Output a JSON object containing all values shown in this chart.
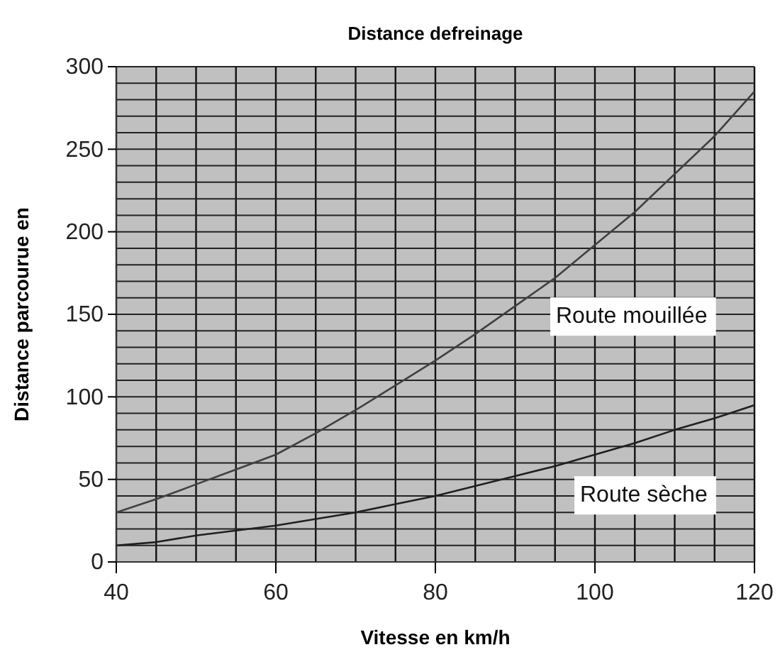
{
  "chart_data": {
    "type": "line",
    "title": "Distance defreinage",
    "xlabel": "Vitesse en km/h",
    "ylabel": "Distance parcourue en",
    "x": [
      40,
      45,
      50,
      55,
      60,
      65,
      70,
      75,
      80,
      85,
      90,
      95,
      100,
      105,
      110,
      115,
      120
    ],
    "series": [
      {
        "name": "Route mouillée",
        "color": "#404040",
        "values": [
          30,
          38,
          47,
          56,
          65,
          78,
          92,
          107,
          122,
          138,
          155,
          172,
          192,
          212,
          235,
          258,
          285
        ]
      },
      {
        "name": "Route sèche",
        "color": "#202020",
        "values": [
          10,
          12,
          16,
          19,
          22,
          26,
          30,
          35,
          40,
          46,
          52,
          58,
          65,
          72,
          80,
          87,
          95
        ]
      }
    ],
    "xlim": [
      40,
      120
    ],
    "xticks": [
      40,
      {
        "value": 45,
        "label": null
      },
      {
        "value": 50,
        "label": null
      },
      {
        "value": 55,
        "label": null
      },
      60,
      {
        "value": 65,
        "label": null
      },
      {
        "value": 70,
        "label": null
      },
      {
        "value": 75,
        "label": null
      },
      80,
      {
        "value": 85,
        "label": null
      },
      {
        "value": 90,
        "label": null
      },
      {
        "value": 95,
        "label": null
      },
      100,
      {
        "value": 105,
        "label": null
      },
      {
        "value": 110,
        "label": null
      },
      {
        "value": 115,
        "label": null
      },
      120
    ],
    "ylim": [
      0,
      300
    ],
    "yticks": [
      0,
      {
        "value": 10,
        "label": null
      },
      {
        "value": 20,
        "label": null
      },
      {
        "value": 30,
        "label": null
      },
      {
        "value": 40,
        "label": null
      },
      50,
      {
        "value": 60,
        "label": null
      },
      {
        "value": 70,
        "label": null
      },
      {
        "value": 80,
        "label": null
      },
      {
        "value": 90,
        "label": null
      },
      100,
      {
        "value": 110,
        "label": null
      },
      {
        "value": 120,
        "label": null
      },
      {
        "value": 130,
        "label": null
      },
      {
        "value": 140,
        "label": null
      },
      150,
      {
        "value": 160,
        "label": null
      },
      {
        "value": 170,
        "label": null
      },
      {
        "value": 180,
        "label": null
      },
      {
        "value": 190,
        "label": null
      },
      200,
      {
        "value": 210,
        "label": null
      },
      {
        "value": 220,
        "label": null
      },
      {
        "value": 230,
        "label": null
      },
      {
        "value": 240,
        "label": null
      },
      250,
      {
        "value": 260,
        "label": null
      },
      {
        "value": 270,
        "label": null
      },
      {
        "value": 280,
        "label": null
      },
      {
        "value": 290,
        "label": null
      },
      300
    ],
    "grid": true,
    "legend": false,
    "marker": "none",
    "line_style": "solid"
  }
}
